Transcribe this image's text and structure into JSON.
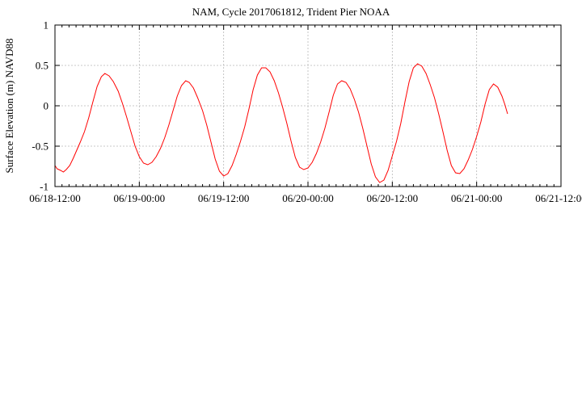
{
  "chart_data": {
    "type": "line",
    "title": "NAM, Cycle 2017061812,  Trident Pier NOAA",
    "xlabel": "",
    "ylabel": "Surface Elevation (m) NAVD88",
    "x_unit": "hours",
    "xlim": [
      0,
      72
    ],
    "ylim": [
      -1,
      1
    ],
    "x_tick_values": [
      0,
      12,
      24,
      36,
      48,
      60,
      72
    ],
    "x_tick_labels": [
      "06/18-12:00",
      "06/19-00:00",
      "06/19-12:00",
      "06/20-00:00",
      "06/20-12:00",
      "06/21-00:00",
      "06/21-12:00"
    ],
    "y_tick_values": [
      -1,
      -0.5,
      0,
      0.5,
      1
    ],
    "y_tick_labels": [
      "-1",
      "-0.5",
      "0",
      "0.5",
      "1"
    ],
    "grid": true,
    "series": [
      {
        "color": "#ff0000",
        "points": [
          [
            0.0,
            -0.74
          ],
          [
            0.3,
            -0.78
          ],
          [
            0.8,
            -0.8
          ],
          [
            1.2,
            -0.82
          ],
          [
            1.6,
            -0.79
          ],
          [
            2.1,
            -0.74
          ],
          [
            2.6,
            -0.65
          ],
          [
            3.1,
            -0.55
          ],
          [
            3.6,
            -0.45
          ],
          [
            4.2,
            -0.32
          ],
          [
            4.8,
            -0.15
          ],
          [
            5.4,
            0.05
          ],
          [
            6.0,
            0.24
          ],
          [
            6.6,
            0.36
          ],
          [
            7.1,
            0.4
          ],
          [
            7.7,
            0.37
          ],
          [
            8.3,
            0.3
          ],
          [
            9.0,
            0.18
          ],
          [
            9.6,
            0.03
          ],
          [
            10.2,
            -0.14
          ],
          [
            10.8,
            -0.32
          ],
          [
            11.4,
            -0.5
          ],
          [
            12.0,
            -0.63
          ],
          [
            12.6,
            -0.71
          ],
          [
            13.2,
            -0.73
          ],
          [
            13.8,
            -0.7
          ],
          [
            14.4,
            -0.63
          ],
          [
            15.0,
            -0.53
          ],
          [
            15.6,
            -0.4
          ],
          [
            16.2,
            -0.24
          ],
          [
            16.8,
            -0.06
          ],
          [
            17.4,
            0.12
          ],
          [
            18.0,
            0.25
          ],
          [
            18.6,
            0.31
          ],
          [
            19.1,
            0.29
          ],
          [
            19.7,
            0.22
          ],
          [
            20.3,
            0.1
          ],
          [
            21.0,
            -0.06
          ],
          [
            21.6,
            -0.24
          ],
          [
            22.2,
            -0.45
          ],
          [
            22.8,
            -0.66
          ],
          [
            23.4,
            -0.81
          ],
          [
            24.0,
            -0.87
          ],
          [
            24.6,
            -0.84
          ],
          [
            25.2,
            -0.74
          ],
          [
            25.8,
            -0.6
          ],
          [
            26.4,
            -0.44
          ],
          [
            27.0,
            -0.26
          ],
          [
            27.6,
            -0.04
          ],
          [
            28.2,
            0.2
          ],
          [
            28.8,
            0.38
          ],
          [
            29.4,
            0.47
          ],
          [
            30.0,
            0.47
          ],
          [
            30.6,
            0.42
          ],
          [
            31.2,
            0.31
          ],
          [
            31.8,
            0.16
          ],
          [
            32.4,
            -0.02
          ],
          [
            33.0,
            -0.22
          ],
          [
            33.6,
            -0.44
          ],
          [
            34.2,
            -0.64
          ],
          [
            34.8,
            -0.76
          ],
          [
            35.4,
            -0.79
          ],
          [
            36.0,
            -0.77
          ],
          [
            36.6,
            -0.7
          ],
          [
            37.2,
            -0.59
          ],
          [
            37.8,
            -0.45
          ],
          [
            38.4,
            -0.28
          ],
          [
            39.0,
            -0.08
          ],
          [
            39.6,
            0.13
          ],
          [
            40.2,
            0.27
          ],
          [
            40.8,
            0.31
          ],
          [
            41.4,
            0.29
          ],
          [
            42.0,
            0.21
          ],
          [
            42.6,
            0.08
          ],
          [
            43.2,
            -0.08
          ],
          [
            43.8,
            -0.28
          ],
          [
            44.4,
            -0.5
          ],
          [
            45.0,
            -0.72
          ],
          [
            45.6,
            -0.88
          ],
          [
            46.2,
            -0.95
          ],
          [
            46.8,
            -0.92
          ],
          [
            47.4,
            -0.8
          ],
          [
            48.0,
            -0.62
          ],
          [
            48.6,
            -0.44
          ],
          [
            49.2,
            -0.22
          ],
          [
            49.8,
            0.05
          ],
          [
            50.4,
            0.3
          ],
          [
            51.0,
            0.47
          ],
          [
            51.6,
            0.52
          ],
          [
            52.2,
            0.49
          ],
          [
            52.8,
            0.4
          ],
          [
            53.4,
            0.26
          ],
          [
            54.0,
            0.1
          ],
          [
            54.6,
            -0.1
          ],
          [
            55.2,
            -0.32
          ],
          [
            55.8,
            -0.55
          ],
          [
            56.4,
            -0.74
          ],
          [
            57.0,
            -0.83
          ],
          [
            57.6,
            -0.84
          ],
          [
            58.2,
            -0.78
          ],
          [
            58.8,
            -0.67
          ],
          [
            59.4,
            -0.54
          ],
          [
            60.0,
            -0.38
          ],
          [
            60.6,
            -0.2
          ],
          [
            61.2,
            0.02
          ],
          [
            61.8,
            0.2
          ],
          [
            62.4,
            0.27
          ],
          [
            63.0,
            0.23
          ],
          [
            63.6,
            0.12
          ],
          [
            64.0,
            0.02
          ],
          [
            64.4,
            -0.1
          ]
        ]
      }
    ]
  }
}
